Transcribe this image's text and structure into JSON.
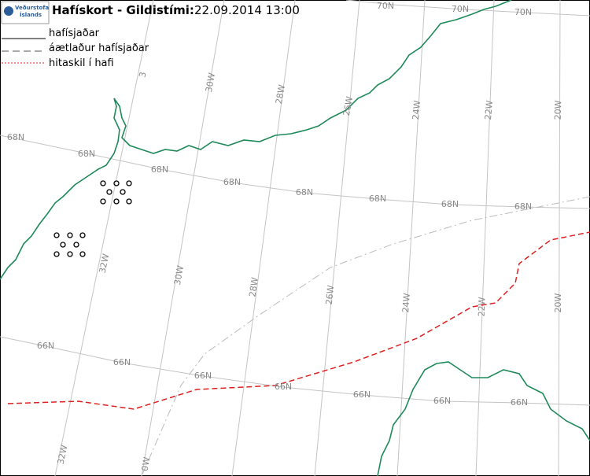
{
  "header": {
    "logo_line1": "Veðurstofa",
    "logo_line2": "Íslands",
    "title": "Hafískort - Gildistími:",
    "time": "22.09.2014 13:00"
  },
  "legend": [
    {
      "label": "hafísjaðar"
    },
    {
      "label": "áætlaður hafísjaðar"
    },
    {
      "label": "hitaskil í hafi"
    }
  ],
  "grid_labels": [
    "70N",
    "70N",
    "70N",
    "3",
    "30W",
    "28W",
    "26W",
    "24W",
    "22W",
    "20W",
    "68N",
    "68N",
    "68N",
    "68N",
    "68N",
    "68N",
    "68N",
    "68N",
    "32W",
    "30W",
    "28W",
    "26W",
    "24W",
    "22W",
    "20W",
    "66N",
    "66N",
    "66N",
    "66N",
    "66N",
    "66N",
    "66N",
    "32W",
    "0W"
  ]
}
